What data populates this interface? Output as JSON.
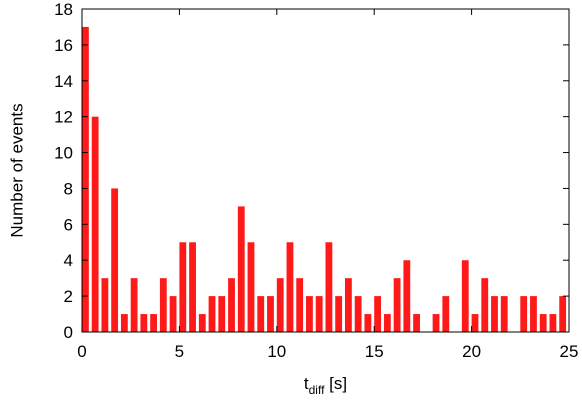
{
  "chart_data": {
    "type": "bar",
    "xlabel_main": "t",
    "xlabel_sub": "diff",
    "xlabel_unit": " [s]",
    "ylabel": "Number of events",
    "xlim": [
      0,
      25
    ],
    "ylim": [
      0,
      18
    ],
    "xticks": [
      0,
      5,
      10,
      15,
      20,
      25
    ],
    "yticks": [
      0,
      2,
      4,
      6,
      8,
      10,
      12,
      14,
      16,
      18
    ],
    "bin_width": 0.5,
    "bar_width_fraction": 0.7,
    "bar_color": "#ff1a1a",
    "bins_start": [
      0,
      0.5,
      1,
      1.5,
      2,
      2.5,
      3,
      3.5,
      4,
      4.5,
      5,
      5.5,
      6,
      6.5,
      7,
      7.5,
      8,
      8.5,
      9,
      9.5,
      10,
      10.5,
      11,
      11.5,
      12,
      12.5,
      13,
      13.5,
      14,
      14.5,
      15,
      15.5,
      16,
      16.5,
      17,
      17.5,
      18,
      18.5,
      19,
      19.5,
      20,
      20.5,
      21,
      21.5,
      22,
      22.5,
      23,
      23.5,
      24,
      24.5
    ],
    "values": [
      17,
      12,
      3,
      8,
      1,
      3,
      1,
      1,
      3,
      2,
      5,
      5,
      1,
      2,
      2,
      3,
      7,
      5,
      2,
      2,
      3,
      5,
      3,
      2,
      2,
      5,
      2,
      3,
      2,
      1,
      2,
      1,
      3,
      4,
      1,
      0,
      1,
      2,
      0,
      4,
      1,
      3,
      2,
      2,
      0,
      2,
      2,
      1,
      1,
      2
    ],
    "grid": false,
    "legend": "none"
  }
}
